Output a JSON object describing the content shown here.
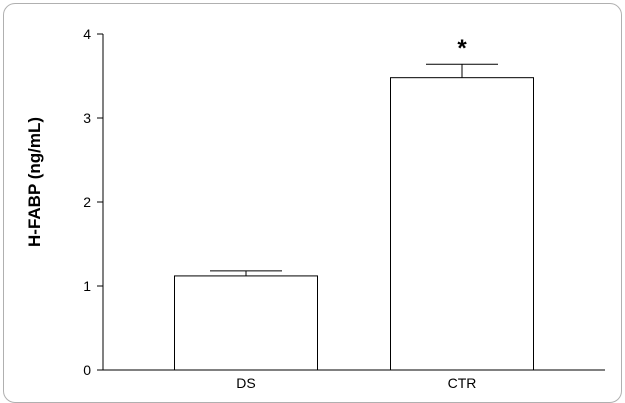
{
  "chart_data": {
    "type": "bar",
    "title": "",
    "xlabel": "",
    "ylabel": "H-FABP (ng/mL)",
    "categories": [
      "DS",
      "CTR"
    ],
    "values": [
      1.12,
      3.48
    ],
    "errors": [
      0.06,
      0.16
    ],
    "annotations": [
      {
        "category": "CTR",
        "text": "*"
      }
    ],
    "ylim": [
      0,
      4
    ],
    "yticks": [
      "0",
      "1",
      "2",
      "3",
      "4"
    ],
    "grid": false,
    "bar_color": "#ffffff",
    "edge_color": "#000000"
  }
}
